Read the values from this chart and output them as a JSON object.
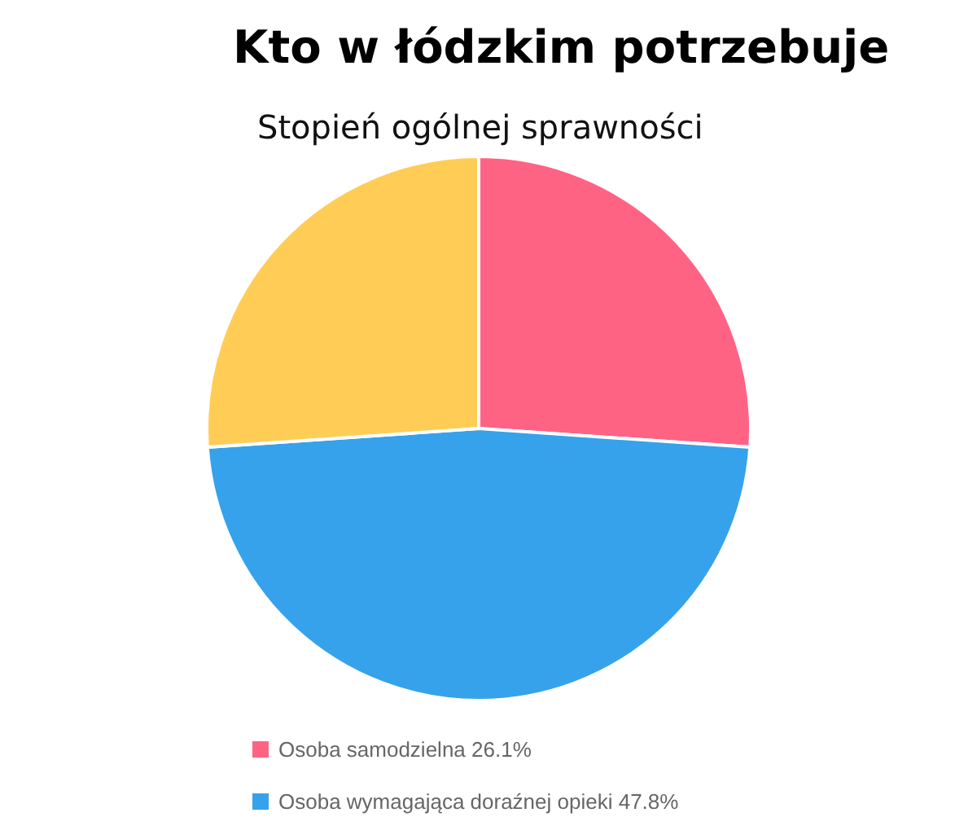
{
  "chart_data": {
    "type": "pie",
    "title": "Stopień ogólnej sprawności",
    "annotations": [
      "Kto w łódzkim potrzebuje"
    ],
    "categories": [
      "Osoba samodzielna 26.1%",
      "Osoba wymagająca doraźnej opieki 47.8%",
      null
    ],
    "values": [
      26.1,
      47.8,
      26.1
    ],
    "colors": [
      "#ff6384",
      "#36a2eb",
      "#ffcd56"
    ],
    "legend": "bottom left"
  }
}
